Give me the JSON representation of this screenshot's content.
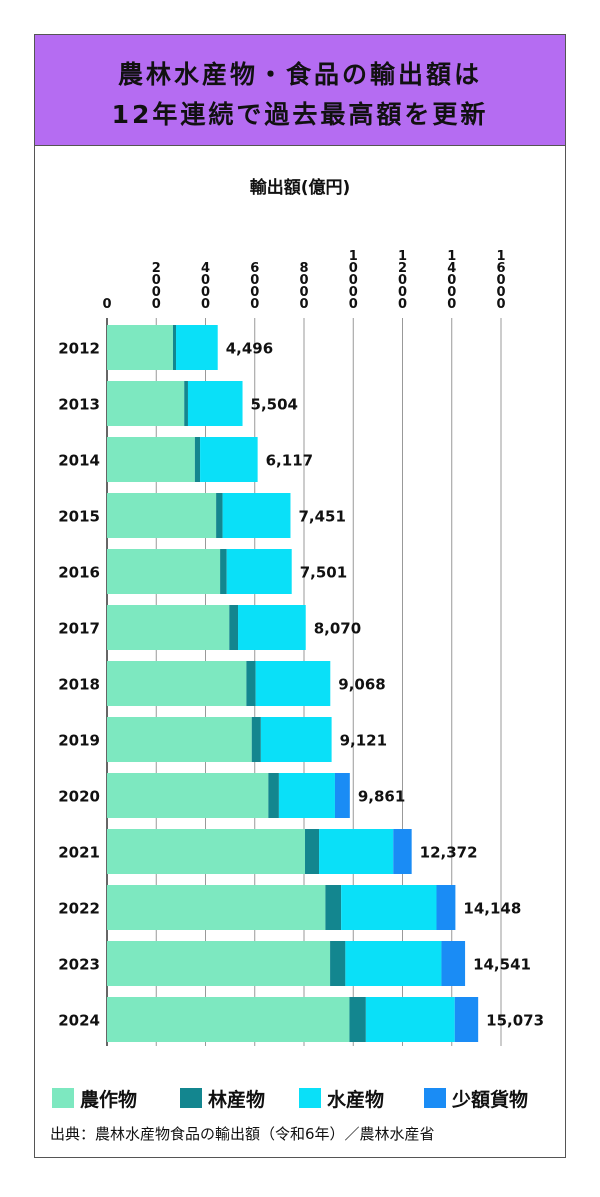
{
  "title": {
    "line1": "農林水産物・食品の輸出額は",
    "line2": "12年連続で過去最高額を更新"
  },
  "source": "出典：農林水産物食品の輸出額（令和6年）／農林水産省",
  "colors": {
    "agri": "#7de8c0",
    "forest": "#13868f",
    "fish": "#0ae0f8",
    "small": "#1a8cf5",
    "title_bg": "#b56cf2"
  },
  "chart_data": {
    "type": "bar",
    "orientation": "horizontal",
    "stacked": true,
    "axis_title": "輸出額(億円)",
    "axis_position": "top",
    "xlim": [
      0,
      16000
    ],
    "ticks": [
      {
        "value": 0,
        "label": "0"
      },
      {
        "value": 2000,
        "label": "2000"
      },
      {
        "value": 4000,
        "label": "4000"
      },
      {
        "value": 6000,
        "label": "6000"
      },
      {
        "value": 8000,
        "label": "8000"
      },
      {
        "value": 10000,
        "label": "10000"
      },
      {
        "value": 12000,
        "label": "12000"
      },
      {
        "value": 14000,
        "label": "14000"
      },
      {
        "value": 16000,
        "label": "16000"
      }
    ],
    "grid": true,
    "categories": [
      "2012",
      "2013",
      "2014",
      "2015",
      "2016",
      "2017",
      "2018",
      "2019",
      "2020",
      "2021",
      "2022",
      "2023",
      "2024"
    ],
    "series": [
      {
        "name": "農作物",
        "color": "#7de8c0",
        "values": [
          2680,
          3136,
          3569,
          4431,
          4593,
          4966,
          5661,
          5878,
          6552,
          8041,
          8870,
          9059,
          9845
        ]
      },
      {
        "name": "林産物",
        "color": "#13868f",
        "values": [
          123,
          152,
          211,
          263,
          268,
          355,
          376,
          370,
          429,
          570,
          638,
          621,
          667
        ]
      },
      {
        "name": "水産物",
        "color": "#0ae0f8",
        "values": [
          1693,
          2216,
          2337,
          2757,
          2640,
          2749,
          3031,
          2873,
          2276,
          3015,
          3873,
          3901,
          3609
        ]
      },
      {
        "name": "少額貨物",
        "color": "#1a8cf5",
        "values": [
          0,
          0,
          0,
          0,
          0,
          0,
          0,
          0,
          604,
          746,
          767,
          960,
          952
        ]
      }
    ],
    "totals": [
      4496,
      5504,
      6117,
      7451,
      7501,
      8070,
      9068,
      9121,
      9861,
      12372,
      14148,
      14541,
      15073
    ],
    "total_labels": [
      "4,496",
      "5,504",
      "6,117",
      "7,451",
      "7,501",
      "8,070",
      "9,068",
      "9,121",
      "9,861",
      "12,372",
      "14,148",
      "14,541",
      "15,073"
    ],
    "legend_position": "bottom"
  }
}
